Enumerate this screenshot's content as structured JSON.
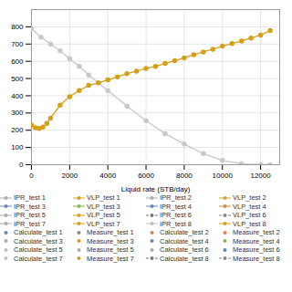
{
  "chart_data": {
    "type": "line",
    "title": "",
    "xlabel": "Liquid rate (STB/day)",
    "ylabel": "",
    "xlim": [
      0,
      13000
    ],
    "ylim": [
      0,
      900
    ],
    "xticks": [
      0,
      2000,
      4000,
      6000,
      8000,
      10000,
      12000
    ],
    "yticks": [
      0,
      100,
      200,
      300,
      400,
      500,
      600,
      700,
      800
    ],
    "grid": true,
    "series": [
      {
        "color": "#c8c8c8",
        "marker": "circle",
        "line_style": "solid",
        "x": [
          0,
          500,
          1000,
          1500,
          2000,
          2500,
          3000,
          4000,
          5000,
          6000,
          7000,
          8000,
          9000,
          10000,
          11000,
          12000,
          12500
        ],
        "values": [
          790,
          740,
          700,
          660,
          615,
          570,
          520,
          430,
          340,
          255,
          180,
          120,
          65,
          25,
          5,
          0,
          0
        ]
      },
      {
        "color": "#d4a017",
        "marker": "circle",
        "line_style": "solid",
        "x": [
          0,
          200,
          400,
          600,
          800,
          1000,
          1500,
          2000,
          2500,
          3000,
          3500,
          4000,
          4500,
          5000,
          5500,
          6000,
          6500,
          7000,
          7500,
          8000,
          8500,
          9000,
          9500,
          10000,
          10500,
          11000,
          11500,
          12000,
          12500
        ],
        "values": [
          230,
          215,
          210,
          218,
          240,
          270,
          345,
          395,
          430,
          460,
          475,
          492,
          510,
          528,
          543,
          558,
          571,
          587,
          603,
          620,
          638,
          654,
          670,
          688,
          703,
          718,
          735,
          752,
          778
        ]
      }
    ],
    "legend_entries": [
      {
        "name": "IPR_test 1",
        "color": "#aaaaaa",
        "marker": "circle",
        "line_style": "solid"
      },
      {
        "name": "VLP_test 1",
        "color": "#d4a017",
        "marker": "circle",
        "line_style": "solid"
      },
      {
        "name": "IPR_test 2",
        "color": "#aaaaaa",
        "marker": "circle",
        "line_style": "solid"
      },
      {
        "name": "VLP_test 2",
        "color": "#ccaa33",
        "marker": "circle",
        "line_style": "solid"
      },
      {
        "name": "IPR_test 3",
        "color": "#6688bb",
        "marker": "circle",
        "line_style": "solid"
      },
      {
        "name": "VLP_test 3",
        "color": "#88bb44",
        "marker": "circle",
        "line_style": "solid"
      },
      {
        "name": "IPR_test 4",
        "color": "#6688bb",
        "marker": "circle",
        "line_style": "solid"
      },
      {
        "name": "VLP_test 4",
        "color": "#cc8844",
        "marker": "circle",
        "line_style": "solid"
      },
      {
        "name": "IPR_test 5",
        "color": "#aaaaaa",
        "marker": "circle",
        "line_style": "solid"
      },
      {
        "name": "VLP_test 5",
        "color": "#d4a017",
        "marker": "circle",
        "line_style": "solid"
      },
      {
        "name": "IPR_test 6",
        "color": "#777777",
        "marker": "circle",
        "line_style": "dashed"
      },
      {
        "name": "VLP_test 6",
        "color": "#888888",
        "marker": "circle",
        "line_style": "dashed"
      },
      {
        "name": "IPR_test 7",
        "color": "#aaaaaa",
        "marker": "circle",
        "line_style": "solid"
      },
      {
        "name": "VLP_test 7",
        "color": "#d4a017",
        "marker": "circle",
        "line_style": "solid"
      },
      {
        "name": "IPR_test 8",
        "color": "#c0c0c0",
        "marker": "circle",
        "line_style": "solid"
      },
      {
        "name": "VLP_test 8",
        "color": "#d4a017",
        "marker": "circle",
        "line_style": "solid"
      },
      {
        "name": "Calculate_test 1",
        "color": "#6688bb",
        "marker": "circle",
        "line_style": "none"
      },
      {
        "name": "Measure_test 1",
        "color": "#888888",
        "marker": "circle",
        "line_style": "none"
      },
      {
        "name": "Calculate_test 2",
        "color": "#cc8844",
        "marker": "circle",
        "line_style": "none"
      },
      {
        "name": "Measure_test 2",
        "color": "#ff7744",
        "marker": "circle",
        "line_style": "none"
      },
      {
        "name": "Calculate_test 3",
        "color": "#aaaaaa",
        "marker": "circle",
        "line_style": "none"
      },
      {
        "name": "Measure_test 3",
        "color": "#d4a017",
        "marker": "circle",
        "line_style": "none"
      },
      {
        "name": "Calculate_test 4",
        "color": "#6688bb",
        "marker": "circle",
        "line_style": "none"
      },
      {
        "name": "Measure_test 4",
        "color": "#88bb44",
        "marker": "circle",
        "line_style": "none"
      },
      {
        "name": "Calculate_test 5",
        "color": "#c0c0c0",
        "marker": "circle",
        "line_style": "none"
      },
      {
        "name": "Measure_test 5",
        "color": "#aaaaaa",
        "marker": "circle",
        "line_style": "none"
      },
      {
        "name": "Calculate_test 6",
        "color": "#aaaaaa",
        "marker": "circle",
        "line_style": "none"
      },
      {
        "name": "Measure_test 6",
        "color": "#6688bb",
        "marker": "circle",
        "line_style": "none"
      },
      {
        "name": "Calculate_test 7",
        "color": "#c0c0c0",
        "marker": "circle",
        "line_style": "none"
      },
      {
        "name": "Measure_test 7",
        "color": "#d4a017",
        "marker": "circle",
        "line_style": "none"
      },
      {
        "name": "Calculate_test 8",
        "color": "#777777",
        "marker": "circle",
        "line_style": "dashed"
      },
      {
        "name": "Measure_test 8",
        "color": "#888888",
        "marker": "circle",
        "line_style": "dashed"
      }
    ]
  }
}
